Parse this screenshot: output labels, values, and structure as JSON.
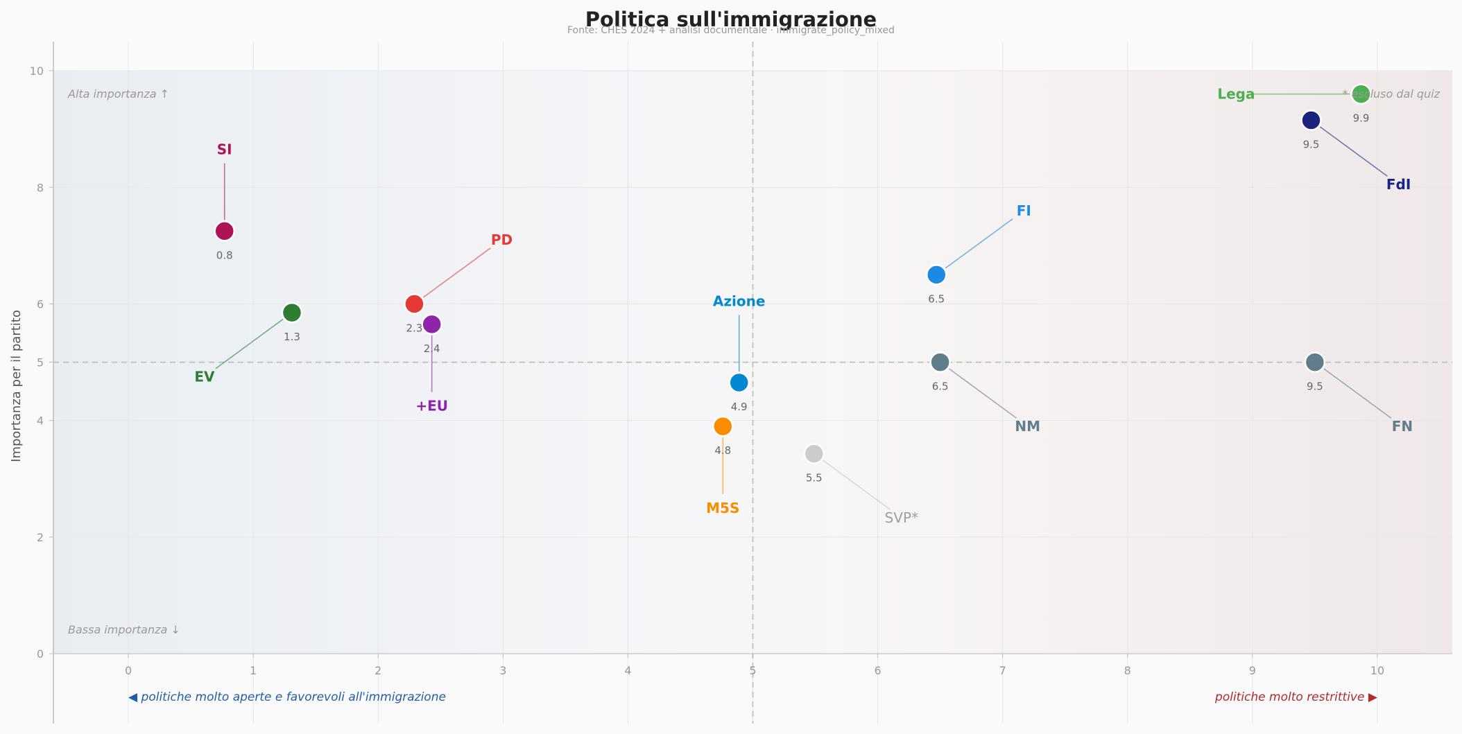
{
  "chart_data": {
    "type": "scatter",
    "title": "Politica sull'immigrazione",
    "subtitle": "Fonte: CHES 2024 + analisi documentale · immigrate_policy_mixed",
    "xlabel": "",
    "ylabel": "Importanza per il partito",
    "xlim": [
      -0.6,
      10.6
    ],
    "ylim": [
      -1.2,
      10.5
    ],
    "plot_ylim": [
      0,
      10
    ],
    "x_ticks": [
      "0",
      "1",
      "2",
      "3",
      "4",
      "5",
      "6",
      "7",
      "8",
      "9",
      "10"
    ],
    "y_ticks": [
      "0",
      "2",
      "4",
      "5",
      "6",
      "8",
      "10"
    ],
    "grid": true,
    "reference_lines": {
      "x": 5,
      "y": 5
    },
    "corner_labels": {
      "top_left": "Alta importanza ↑",
      "bottom_left": "Bassa importanza ↓",
      "top_right": "* escluso dal quiz"
    },
    "axis_notes": {
      "left": "◀  politiche molto aperte e favorevoli all'immigrazione",
      "right": "politiche molto restrittive  ▶",
      "left_color": "#1f5fa8",
      "right_color": "#b02a2a"
    },
    "points": [
      {
        "name": "SI",
        "value_label": "0.8",
        "x": 0.77,
        "y": 7.25,
        "color": "#ad1457",
        "label_x": 0.77,
        "label_y": 8.65,
        "val_pos": "below",
        "excluded": false
      },
      {
        "name": "EV",
        "value_label": "1.3",
        "x": 1.31,
        "y": 5.85,
        "color": "#2e7d32",
        "label_x": 0.61,
        "label_y": 4.75,
        "val_pos": "below",
        "excluded": false
      },
      {
        "name": "PD",
        "value_label": "2.3",
        "x": 2.29,
        "y": 6.0,
        "color": "#e53935",
        "label_x": 2.99,
        "label_y": 7.1,
        "val_pos": "below",
        "excluded": false
      },
      {
        "name": "+EU",
        "value_label": "2.4",
        "x": 2.43,
        "y": 5.65,
        "color": "#8e24aa",
        "label_x": 2.43,
        "label_y": 4.25,
        "val_pos": "below",
        "excluded": false
      },
      {
        "name": "M5S",
        "value_label": "4.8",
        "x": 4.76,
        "y": 3.9,
        "color": "#fb8c00",
        "label_x": 4.76,
        "label_y": 2.5,
        "val_pos": "below",
        "excluded": false
      },
      {
        "name": "Azione",
        "value_label": "4.9",
        "x": 4.89,
        "y": 4.65,
        "color": "#0288d1",
        "label_x": 4.89,
        "label_y": 6.05,
        "val_pos": "below",
        "excluded": false
      },
      {
        "name": "SVP*",
        "value_label": "5.5",
        "x": 5.49,
        "y": 3.43,
        "color": "#c8c8c8",
        "label_x": 6.19,
        "label_y": 2.33,
        "val_pos": "below",
        "excluded": true
      },
      {
        "name": "FI",
        "value_label": "6.5",
        "x": 6.47,
        "y": 6.5,
        "color": "#1e88e5",
        "label_x": 7.17,
        "label_y": 7.6,
        "val_pos": "below",
        "excluded": false
      },
      {
        "name": "NM",
        "value_label": "6.5",
        "x": 6.5,
        "y": 5.0,
        "color": "#607d8b",
        "label_x": 7.2,
        "label_y": 3.9,
        "val_pos": "below",
        "excluded": false
      },
      {
        "name": "FN",
        "value_label": "9.5",
        "x": 9.5,
        "y": 5.0,
        "color": "#607d8b",
        "label_x": 10.2,
        "label_y": 3.9,
        "val_pos": "below",
        "excluded": false
      },
      {
        "name": "FdI",
        "value_label": "9.5",
        "x": 9.47,
        "y": 9.15,
        "color": "#1a237e",
        "label_x": 10.17,
        "label_y": 8.05,
        "val_pos": "below",
        "excluded": false
      },
      {
        "name": "Lega",
        "value_label": "9.9",
        "x": 9.87,
        "y": 9.6,
        "color": "#4caf50",
        "label_x": 8.87,
        "label_y": 9.6,
        "val_pos": "below",
        "excluded": false
      }
    ]
  }
}
